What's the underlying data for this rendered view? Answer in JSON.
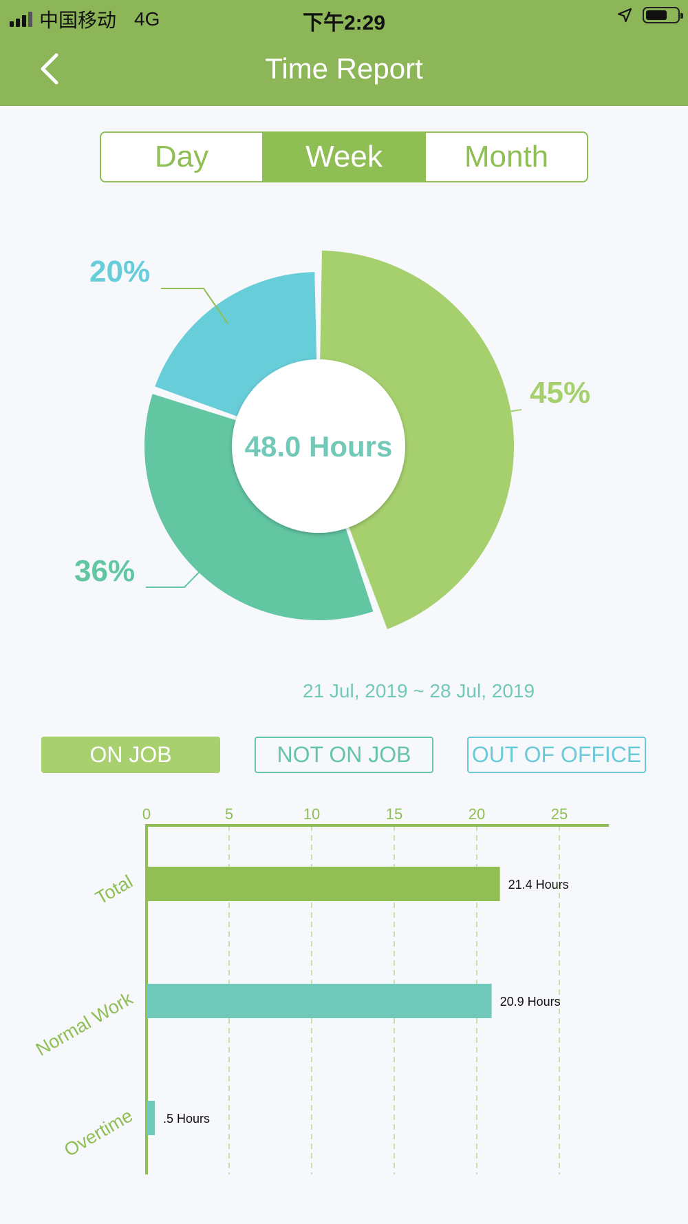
{
  "status_bar": {
    "carrier": "中国移动",
    "network": "4G",
    "time": "下午2:29"
  },
  "nav": {
    "title": "Time Report"
  },
  "segments": [
    {
      "label": "Day",
      "active": false
    },
    {
      "label": "Week",
      "active": true
    },
    {
      "label": "Month",
      "active": false
    }
  ],
  "donut": {
    "center_label": "48.0 Hours",
    "slices": [
      {
        "label": "45%",
        "value": 45,
        "color": "#a6d06e"
      },
      {
        "label": "36%",
        "value": 36,
        "color": "#62c6a2"
      },
      {
        "label": "20%",
        "value": 20,
        "color": "#67cdd8"
      }
    ]
  },
  "date_range": "21 Jul, 2019 ~ 28 Jul, 2019",
  "filters": [
    {
      "label": "ON JOB",
      "active": true
    },
    {
      "label": "NOT ON JOB",
      "active": false
    },
    {
      "label": "OUT OF OFFICE",
      "active": false
    }
  ],
  "colors": {
    "primary_green": "#8db658",
    "light_green": "#a6d06e",
    "teal": "#62c6a2",
    "cyan": "#67cdd8",
    "bar_teal": "#70c9b9"
  },
  "chart_data": {
    "type": "bar",
    "orientation": "horizontal",
    "categories": [
      "Total",
      "Normal Work",
      "Overtime"
    ],
    "values": [
      21.4,
      20.9,
      0.5
    ],
    "data_labels": [
      "21.4 Hours",
      "20.9 Hours",
      ".5 Hours"
    ],
    "colors": [
      "#91be55",
      "#70c9b9",
      "#70c9b9"
    ],
    "xlim": [
      0,
      28
    ],
    "xticks": [
      0,
      5,
      10,
      15,
      20,
      25
    ],
    "grid": true,
    "title": "",
    "xlabel": "",
    "ylabel": ""
  }
}
